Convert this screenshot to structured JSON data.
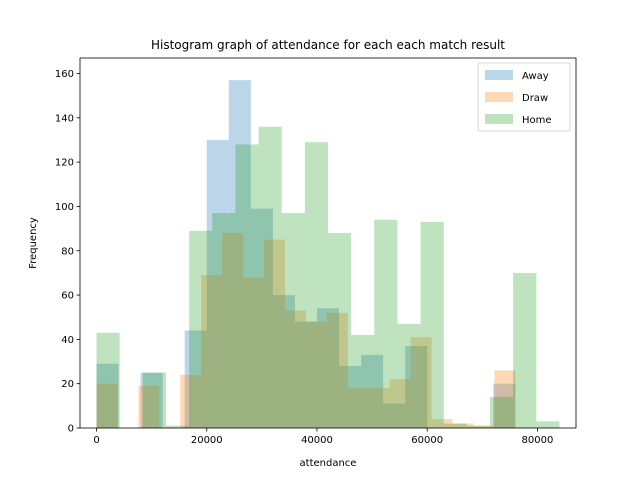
{
  "chart_data": {
    "type": "bar",
    "title": "Histogram graph of attendance for each each match result",
    "xlabel": "attendance",
    "ylabel": "Frequency",
    "xlim": [
      -3000,
      87000
    ],
    "ylim": [
      0,
      167
    ],
    "xticks": [
      0,
      20000,
      40000,
      60000,
      80000
    ],
    "yticks": [
      0,
      20,
      40,
      60,
      80,
      100,
      120,
      140,
      160
    ],
    "grid": false,
    "legend_position": "top-right",
    "series": [
      {
        "name": "Away",
        "color": "#1f77b4",
        "bins": [
          [
            0,
            4000,
            29
          ],
          [
            4000,
            8000,
            0
          ],
          [
            8000,
            12000,
            25
          ],
          [
            12000,
            16000,
            0
          ],
          [
            16000,
            20000,
            44
          ],
          [
            20000,
            24000,
            130
          ],
          [
            24000,
            28000,
            157
          ],
          [
            28000,
            32000,
            99
          ],
          [
            32000,
            36000,
            60
          ],
          [
            36000,
            40000,
            48
          ],
          [
            40000,
            44000,
            54
          ],
          [
            44000,
            48000,
            28
          ],
          [
            48000,
            52000,
            33
          ],
          [
            52000,
            56000,
            11
          ],
          [
            56000,
            60000,
            37
          ],
          [
            60000,
            64000,
            0
          ],
          [
            64000,
            68000,
            0
          ],
          [
            68000,
            72000,
            0
          ],
          [
            72000,
            76000,
            20
          ],
          [
            76000,
            80000,
            0
          ]
        ]
      },
      {
        "name": "Draw",
        "color": "#ff7f0e",
        "bins": [
          [
            0,
            3800,
            20
          ],
          [
            3800,
            7600,
            0
          ],
          [
            7600,
            11400,
            19
          ],
          [
            11400,
            15200,
            0
          ],
          [
            15200,
            19000,
            24
          ],
          [
            19000,
            22800,
            69
          ],
          [
            22800,
            26600,
            88
          ],
          [
            26600,
            30400,
            68
          ],
          [
            30400,
            34200,
            85
          ],
          [
            34200,
            38000,
            53
          ],
          [
            38000,
            41800,
            48
          ],
          [
            41800,
            45600,
            52
          ],
          [
            45600,
            49400,
            18
          ],
          [
            49400,
            53200,
            18
          ],
          [
            53200,
            57000,
            22
          ],
          [
            57000,
            60800,
            41
          ],
          [
            60800,
            64600,
            4
          ],
          [
            64600,
            68400,
            2
          ],
          [
            68400,
            72200,
            1
          ],
          [
            72200,
            76000,
            26
          ]
        ]
      },
      {
        "name": "Home",
        "color": "#2ca02c",
        "bins": [
          [
            0,
            4200,
            43
          ],
          [
            4200,
            8400,
            0
          ],
          [
            8400,
            12600,
            25
          ],
          [
            12600,
            16800,
            1
          ],
          [
            16800,
            21000,
            89
          ],
          [
            21000,
            25200,
            97
          ],
          [
            25200,
            29400,
            128
          ],
          [
            29400,
            33600,
            136
          ],
          [
            33600,
            37800,
            97
          ],
          [
            37800,
            42000,
            129
          ],
          [
            42000,
            46200,
            88
          ],
          [
            46200,
            50400,
            42
          ],
          [
            50400,
            54600,
            94
          ],
          [
            54600,
            58800,
            47
          ],
          [
            58800,
            63000,
            93
          ],
          [
            63000,
            67200,
            2
          ],
          [
            67200,
            71400,
            1
          ],
          [
            71400,
            75600,
            14
          ],
          [
            75600,
            79800,
            70
          ],
          [
            79800,
            84000,
            3
          ]
        ]
      }
    ]
  }
}
